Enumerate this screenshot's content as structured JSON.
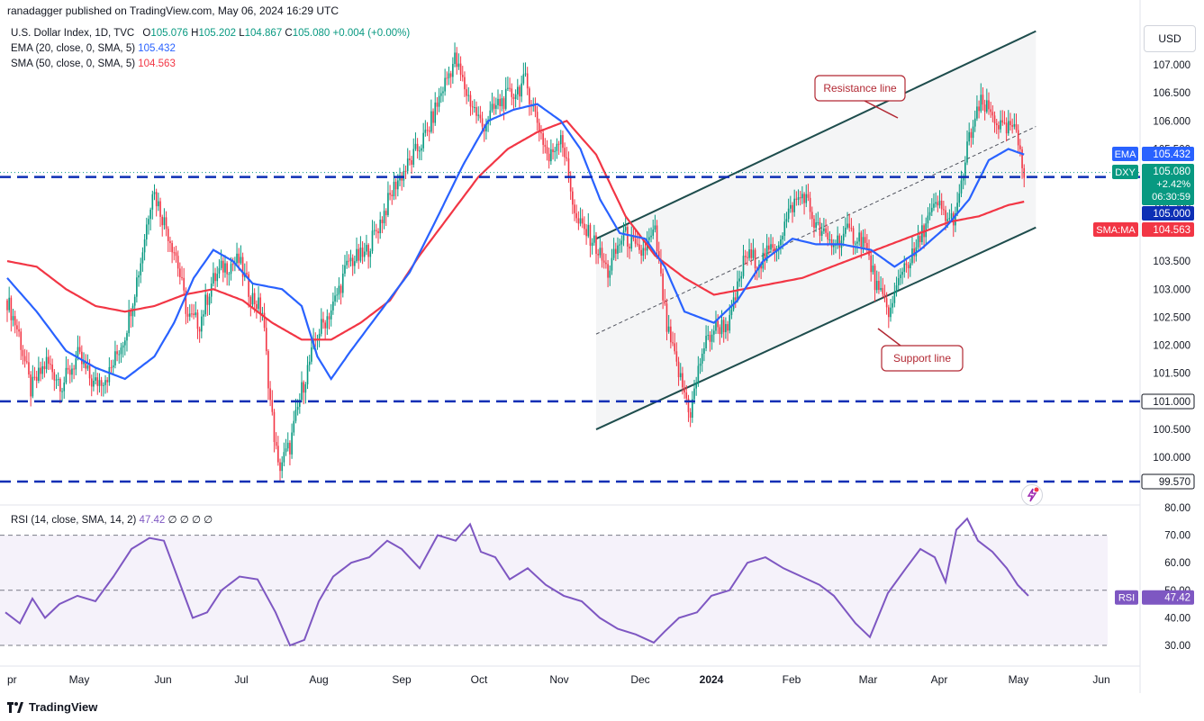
{
  "header": {
    "publisher": "ranadagger published on TradingView.com, May 06, 2024 16:29 UTC"
  },
  "legend": {
    "main": {
      "symbol": "U.S. Dollar Index, 1D, TVC",
      "o_label": "O",
      "o": "105.076",
      "h_label": "H",
      "h": "105.202",
      "l_label": "L",
      "l": "104.867",
      "c_label": "C",
      "c": "105.080",
      "chg": "+0.004 (+0.00%)"
    },
    "ema": {
      "name": "EMA (20, close, 0, SMA, 5)",
      "value": "105.432"
    },
    "sma": {
      "name": "SMA (50, close, 0, SMA, 5)",
      "value": "104.563"
    },
    "rsi": {
      "name": "RSI (14, close, SMA, 14, 2)",
      "value": "47.42",
      "extra": "∅ ∅ ∅ ∅"
    }
  },
  "currency_button": "USD",
  "footer": {
    "brand": "TradingView"
  },
  "colors": {
    "up": "#089981",
    "down": "#f23645",
    "ema": "#2962ff",
    "sma": "#f23645",
    "rsi": "#7e57c2",
    "hline": "#0d2fb5",
    "channel": "#1e4d4d"
  },
  "annotations": {
    "resistance": "Resistance line",
    "support": "Support line"
  },
  "price_axis": {
    "ticks": [
      "107.000",
      "106.500",
      "106.000",
      "105.500",
      "105.000",
      "104.500",
      "104.000",
      "103.500",
      "103.000",
      "102.500",
      "102.000",
      "101.500",
      "101.000",
      "100.500",
      "100.000",
      "99.570"
    ],
    "labels": [
      {
        "tag": "EMA",
        "value": "105.432",
        "color": "#2962ff"
      },
      {
        "tag": "DXY",
        "value": "105.080",
        "sub1": "+2.42%",
        "sub2": "06:30:59",
        "color": "#089981"
      },
      {
        "tag": "",
        "value": "105.000",
        "color": "#0d2fb5"
      },
      {
        "tag": "SMA:MA",
        "value": "104.563",
        "color": "#f23645"
      },
      {
        "tag": "",
        "value": "101.000",
        "color": "#ffffff",
        "text_color": "#131722"
      },
      {
        "tag": "",
        "value": "99.570",
        "color": "#ffffff",
        "text_color": "#131722"
      }
    ]
  },
  "rsi_axis": {
    "ticks": [
      "80.00",
      "70.00",
      "60.00",
      "50.00",
      "40.00",
      "30.00"
    ],
    "label_tag": "RSI",
    "label_value": "47.42"
  },
  "time_axis": [
    "pr",
    "May",
    "Jun",
    "Jul",
    "Aug",
    "Sep",
    "Oct",
    "Nov",
    "Dec",
    "2024",
    "Feb",
    "Mar",
    "Apr",
    "May",
    "Jun"
  ],
  "chart_data": [
    {
      "type": "candlestick",
      "symbol": "DXY",
      "ylim": [
        99.4,
        107.5
      ],
      "horizontal_levels": [
        105.0,
        101.0,
        99.57
      ],
      "ema20_last": 105.432,
      "sma50_last": 104.563,
      "last_close": 105.08,
      "ema20_curve": [
        [
          0,
          103.2
        ],
        [
          15,
          102.6
        ],
        [
          30,
          101.9
        ],
        [
          45,
          101.6
        ],
        [
          60,
          101.4
        ],
        [
          75,
          101.8
        ],
        [
          85,
          102.4
        ],
        [
          95,
          103.2
        ],
        [
          105,
          103.7
        ],
        [
          115,
          103.5
        ],
        [
          125,
          103.1
        ],
        [
          140,
          103.0
        ],
        [
          150,
          102.7
        ],
        [
          158,
          101.8
        ],
        [
          165,
          101.4
        ],
        [
          175,
          101.9
        ],
        [
          190,
          102.6
        ],
        [
          205,
          103.3
        ],
        [
          218,
          104.2
        ],
        [
          232,
          105.2
        ],
        [
          245,
          106.0
        ],
        [
          258,
          106.2
        ],
        [
          270,
          106.3
        ],
        [
          282,
          106.0
        ],
        [
          292,
          105.5
        ],
        [
          302,
          104.6
        ],
        [
          312,
          104.0
        ],
        [
          325,
          103.9
        ],
        [
          335,
          103.4
        ],
        [
          345,
          102.6
        ],
        [
          360,
          102.4
        ],
        [
          372,
          102.8
        ],
        [
          385,
          103.5
        ],
        [
          400,
          103.9
        ],
        [
          412,
          103.8
        ],
        [
          425,
          103.8
        ],
        [
          440,
          103.7
        ],
        [
          452,
          103.4
        ],
        [
          465,
          103.7
        ],
        [
          478,
          104.1
        ],
        [
          490,
          104.6
        ],
        [
          500,
          105.3
        ],
        [
          510,
          105.5
        ],
        [
          518,
          105.4
        ]
      ],
      "sma50_curve": [
        [
          0,
          103.5
        ],
        [
          15,
          103.4
        ],
        [
          30,
          103.0
        ],
        [
          45,
          102.7
        ],
        [
          60,
          102.6
        ],
        [
          75,
          102.7
        ],
        [
          90,
          102.9
        ],
        [
          105,
          103.0
        ],
        [
          120,
          102.8
        ],
        [
          135,
          102.4
        ],
        [
          150,
          102.1
        ],
        [
          165,
          102.1
        ],
        [
          180,
          102.4
        ],
        [
          195,
          102.8
        ],
        [
          210,
          103.6
        ],
        [
          225,
          104.3
        ],
        [
          240,
          105.0
        ],
        [
          255,
          105.5
        ],
        [
          270,
          105.8
        ],
        [
          285,
          106.0
        ],
        [
          300,
          105.4
        ],
        [
          315,
          104.3
        ],
        [
          330,
          103.6
        ],
        [
          345,
          103.2
        ],
        [
          360,
          102.9
        ],
        [
          375,
          103.0
        ],
        [
          390,
          103.1
        ],
        [
          405,
          103.2
        ],
        [
          420,
          103.4
        ],
        [
          435,
          103.6
        ],
        [
          450,
          103.8
        ],
        [
          465,
          104.0
        ],
        [
          480,
          104.2
        ],
        [
          495,
          104.3
        ],
        [
          510,
          104.5
        ],
        [
          518,
          104.56
        ]
      ],
      "channel": {
        "resistance": [
          [
            300,
            103.9
          ],
          [
            524,
            107.6
          ]
        ],
        "support": [
          [
            300,
            100.5
          ],
          [
            524,
            104.1
          ]
        ],
        "mid": [
          [
            300,
            102.2
          ],
          [
            524,
            105.9
          ]
        ]
      }
    },
    {
      "type": "line",
      "name": "RSI",
      "ylim": [
        25,
        80
      ],
      "bands": [
        30,
        50,
        70
      ],
      "last": 47.42,
      "curve": [
        [
          0,
          42
        ],
        [
          8,
          38
        ],
        [
          15,
          47
        ],
        [
          22,
          40
        ],
        [
          30,
          45
        ],
        [
          40,
          48
        ],
        [
          50,
          46
        ],
        [
          60,
          55
        ],
        [
          70,
          65
        ],
        [
          80,
          69
        ],
        [
          88,
          68
        ],
        [
          96,
          54
        ],
        [
          104,
          40
        ],
        [
          112,
          42
        ],
        [
          120,
          50
        ],
        [
          130,
          55
        ],
        [
          140,
          54
        ],
        [
          150,
          42
        ],
        [
          158,
          30
        ],
        [
          166,
          32
        ],
        [
          174,
          46
        ],
        [
          182,
          55
        ],
        [
          192,
          60
        ],
        [
          202,
          62
        ],
        [
          212,
          68
        ],
        [
          220,
          65
        ],
        [
          230,
          58
        ],
        [
          240,
          70
        ],
        [
          250,
          68
        ],
        [
          258,
          74
        ],
        [
          264,
          64
        ],
        [
          272,
          62
        ],
        [
          280,
          54
        ],
        [
          290,
          58
        ],
        [
          300,
          52
        ],
        [
          310,
          48
        ],
        [
          320,
          46
        ],
        [
          330,
          40
        ],
        [
          340,
          36
        ],
        [
          350,
          34
        ],
        [
          360,
          31
        ],
        [
          366,
          35
        ],
        [
          374,
          40
        ],
        [
          384,
          42
        ],
        [
          392,
          48
        ],
        [
          402,
          50
        ],
        [
          412,
          60
        ],
        [
          422,
          62
        ],
        [
          432,
          58
        ],
        [
          442,
          55
        ],
        [
          452,
          52
        ],
        [
          460,
          48
        ],
        [
          472,
          38
        ],
        [
          480,
          33
        ],
        [
          490,
          49
        ],
        [
          500,
          58
        ],
        [
          508,
          65
        ],
        [
          516,
          62
        ],
        [
          522,
          53
        ],
        [
          528,
          72
        ],
        [
          534,
          76
        ],
        [
          540,
          68
        ],
        [
          548,
          64
        ],
        [
          556,
          58
        ],
        [
          562,
          52
        ],
        [
          568,
          48
        ]
      ]
    }
  ]
}
